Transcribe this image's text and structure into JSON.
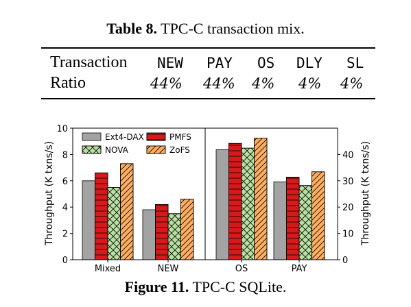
{
  "table": {
    "caption_label": "Table 8.",
    "caption_text": " TPC-C transaction mix.",
    "header": [
      "Transaction",
      "NEW",
      "PAY",
      "OS",
      "DLY",
      "SL"
    ],
    "row": [
      "Ratio",
      "44%",
      "44%",
      "4%",
      "4%",
      "4%"
    ]
  },
  "figure": {
    "caption_label": "Figure 11.",
    "caption_text": " TPC-C SQLite."
  },
  "chart_data": {
    "type": "bar",
    "categories": [
      "Mixed",
      "NEW",
      "OS",
      "PAY"
    ],
    "ylabel_left": "Throughput (K txns/s)",
    "ylabel_right": "Throughput (K txns/s)",
    "ylim_left": [
      0,
      10
    ],
    "yticks_left": [
      "0",
      "2",
      "4",
      "6",
      "8",
      "10"
    ],
    "ylim_right": [
      0,
      50
    ],
    "yticks_right": [
      "0",
      "10",
      "20",
      "30",
      "40"
    ],
    "legend_position": "top-left",
    "divider_between": [
      "NEW",
      "OS"
    ],
    "series": [
      {
        "name": "Ext4-DAX",
        "color": "#a3a3a3",
        "pattern": "none",
        "left_values": [
          6.0,
          3.8
        ],
        "right_values": [
          41.8,
          29.6
        ]
      },
      {
        "name": "PMFS",
        "color": "#d7191c",
        "pattern": "horizontal",
        "left_values": [
          6.6,
          4.2
        ],
        "right_values": [
          44.2,
          31.4
        ]
      },
      {
        "name": "NOVA",
        "color": "#b8e1a2",
        "pattern": "crosshatch",
        "left_values": [
          5.5,
          3.5
        ],
        "right_values": [
          42.4,
          28.2
        ]
      },
      {
        "name": "ZoFS",
        "color": "#fdae61",
        "pattern": "diagonal",
        "left_values": [
          7.3,
          4.6
        ],
        "right_values": [
          46.2,
          33.4
        ]
      }
    ]
  }
}
